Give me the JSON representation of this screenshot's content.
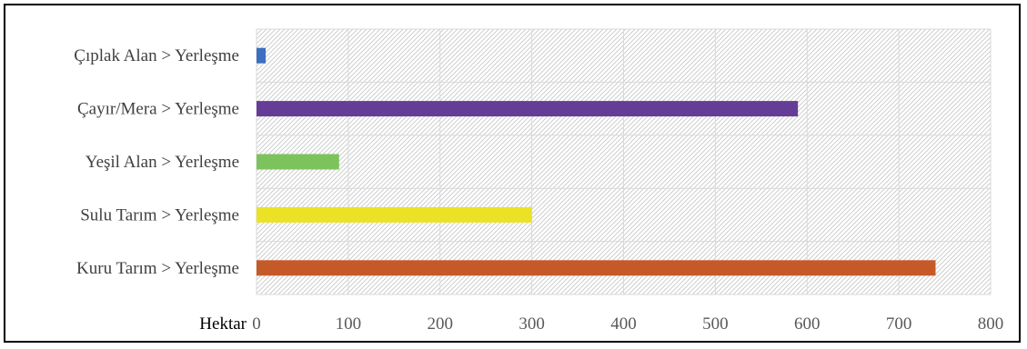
{
  "chart_data": {
    "type": "bar",
    "orientation": "horizontal",
    "categories": [
      "Kuru Tarım > Yerleşme",
      "Sulu Tarım > Yerleşme",
      "Yeşil Alan > Yerleşme",
      "Çayır/Mera > Yerleşme",
      "Çıplak Alan > Yerleşme"
    ],
    "values": [
      740,
      300,
      90,
      590,
      10
    ],
    "colors": [
      "#C55A28",
      "#EBE226",
      "#7DC35D",
      "#663D96",
      "#3D6EBF"
    ],
    "unit_label": "Hektar",
    "xlim": [
      0,
      800
    ],
    "x_ticks": [
      "0",
      "100",
      "200",
      "300",
      "400",
      "500",
      "600",
      "700",
      "800"
    ],
    "grid": true,
    "plot_background": "diagonal-hatch",
    "legend": "none"
  }
}
